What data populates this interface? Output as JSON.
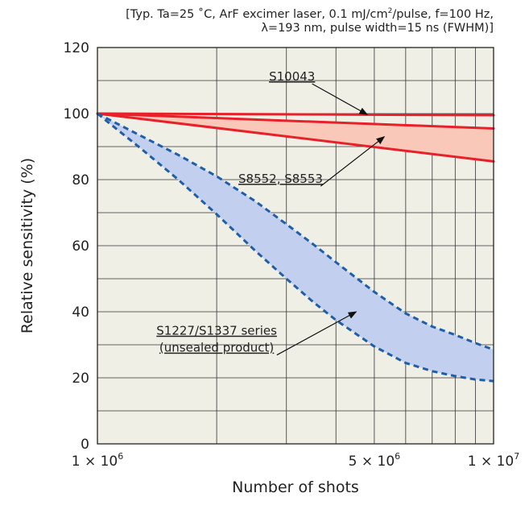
{
  "conditions": {
    "line1_a": "[Typ. Ta=25 ˚C, ArF excimer laser, 0.1 mJ/cm",
    "line1_sup": "2",
    "line1_b": "/pulse, f=100 Hz,",
    "line2": "λ=193 nm, pulse width=15 ns (FWHM)]"
  },
  "chart_data": {
    "type": "line",
    "title": "",
    "xlabel": "Number of shots",
    "ylabel": "Relative sensitivity (%)",
    "xscale": "log",
    "xlim": [
      1000000,
      10000000
    ],
    "ylim": [
      0,
      120
    ],
    "x_ticks": [
      {
        "value": 1000000,
        "label": "1 × 10",
        "exp": "6"
      },
      {
        "value": 5000000,
        "label": "5 × 10",
        "exp": "6"
      },
      {
        "value": 10000000,
        "label": "1 × 10",
        "exp": "7"
      }
    ],
    "y_ticks": [
      0,
      20,
      40,
      60,
      80,
      100,
      120
    ],
    "y_minor_step": 10,
    "grid": true,
    "plot_bg": "#f0efe6",
    "series": [
      {
        "label_ref": "S10043",
        "style": "solid",
        "color": "#e8202a",
        "x": [
          1000000,
          10000000
        ],
        "y": [
          100,
          99.5
        ]
      },
      {
        "label_ref": "S8552, S8553",
        "style": "solid",
        "color": "#e8202a",
        "x": [
          1000000,
          10000000
        ],
        "y": [
          100,
          95.5
        ]
      },
      {
        "label_ref": "S8552, S8553",
        "style": "solid",
        "color": "#e8202a",
        "x": [
          1000000,
          10000000
        ],
        "y": [
          100,
          85.5
        ]
      },
      {
        "label_ref": "S1227/S1337 series",
        "style": "dashed",
        "color": "#1f5fa8",
        "x": [
          1000000,
          1300000,
          1600000,
          2000000,
          2500000,
          3000000,
          3500000,
          4000000,
          5000000,
          6000000,
          7000000,
          8000000,
          9000000,
          10000000
        ],
        "y": [
          100,
          93,
          87.5,
          81,
          73.5,
          66.5,
          60.5,
          55,
          46,
          39.5,
          35.5,
          33,
          30.5,
          28.5
        ]
      },
      {
        "label_ref": "S1227/S1337 series",
        "style": "dashed",
        "color": "#1f5fa8",
        "x": [
          1000000,
          1300000,
          1600000,
          2000000,
          2500000,
          3000000,
          3500000,
          4000000,
          5000000,
          6000000,
          7000000,
          8000000,
          9000000,
          10000000
        ],
        "y": [
          100,
          89,
          80,
          69.5,
          58.5,
          50,
          43,
          37.5,
          29.5,
          24.5,
          22,
          20.5,
          19.5,
          19
        ]
      }
    ],
    "bands": [
      {
        "upper_series": 1,
        "lower_series": 2,
        "color": "#f9c8b8"
      },
      {
        "upper_series": 3,
        "lower_series": 4,
        "color": "#c3cfee"
      }
    ],
    "annotations": [
      {
        "text": "S10043",
        "text_x": 3100000,
        "text_y": 110,
        "arrow_x": 4800000,
        "arrow_y": 99.7
      },
      {
        "text": "S8552, S8553",
        "text_x": 2900000,
        "text_y": 79,
        "arrow_x": 5300000,
        "arrow_y": 93
      },
      {
        "text": "S1227/S1337 series",
        "text2": "(unsealed product)",
        "text_x": 2000000,
        "text_y": 33,
        "arrow_x": 4500000,
        "arrow_y": 40
      }
    ]
  }
}
